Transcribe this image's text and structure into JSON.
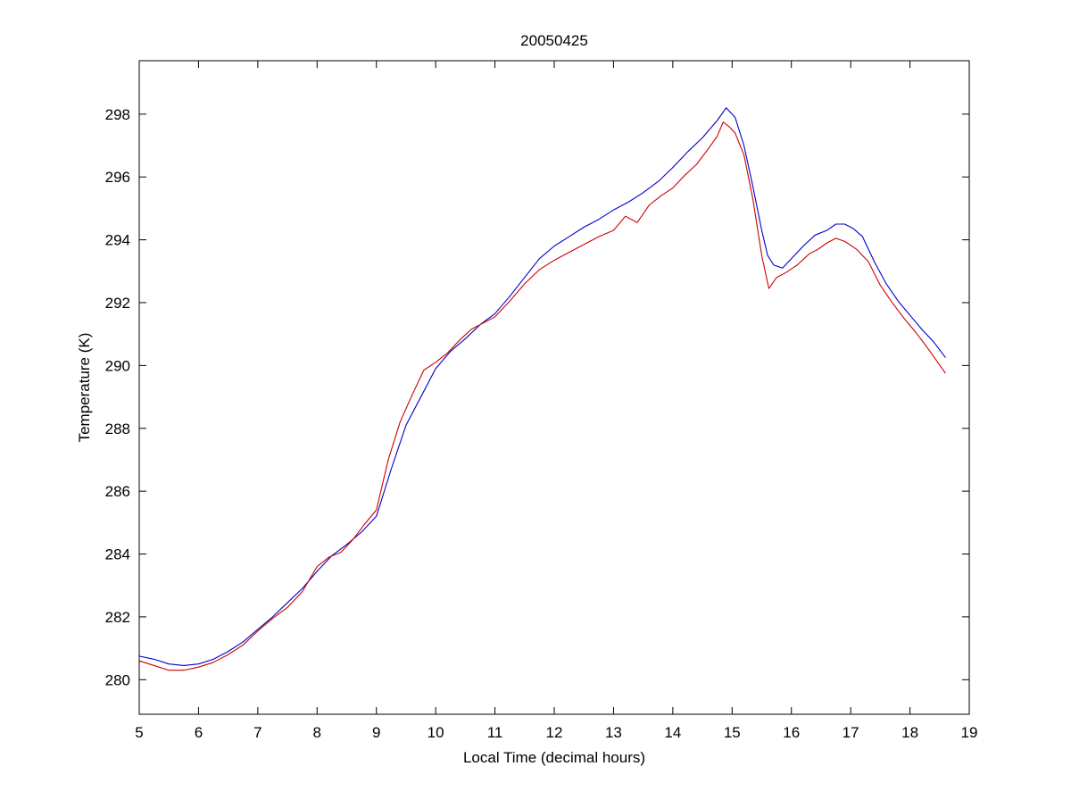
{
  "chart_data": {
    "type": "line",
    "title": "20050425",
    "xlabel": "Local Time (decimal hours)",
    "ylabel": "Temperature (K)",
    "xlim": [
      5,
      19
    ],
    "ylim": [
      278.9,
      299.7
    ],
    "xticks": [
      5,
      6,
      7,
      8,
      9,
      10,
      11,
      12,
      13,
      14,
      15,
      16,
      17,
      18,
      19
    ],
    "yticks": [
      280,
      282,
      284,
      286,
      288,
      290,
      292,
      294,
      296,
      298
    ],
    "grid": false,
    "legend": "none",
    "series": [
      {
        "color": "#0000cc",
        "x": [
          5.0,
          5.25,
          5.5,
          5.75,
          6.0,
          6.25,
          6.5,
          6.75,
          7.0,
          7.25,
          7.5,
          7.75,
          8.0,
          8.25,
          8.5,
          8.75,
          9.0,
          9.25,
          9.5,
          9.75,
          10.0,
          10.25,
          10.5,
          10.75,
          11.0,
          11.25,
          11.5,
          11.75,
          12.0,
          12.25,
          12.5,
          12.75,
          13.0,
          13.25,
          13.5,
          13.75,
          14.0,
          14.25,
          14.5,
          14.75,
          14.9,
          15.05,
          15.2,
          15.35,
          15.5,
          15.6,
          15.7,
          15.85,
          16.0,
          16.2,
          16.4,
          16.6,
          16.75,
          16.9,
          17.05,
          17.2,
          17.4,
          17.6,
          17.8,
          18.0,
          18.2,
          18.4,
          18.6
        ],
        "y": [
          280.75,
          280.65,
          280.5,
          280.45,
          280.5,
          280.65,
          280.9,
          281.2,
          281.6,
          282.0,
          282.45,
          282.9,
          283.45,
          283.95,
          284.3,
          284.7,
          285.2,
          286.7,
          288.1,
          289.0,
          289.9,
          290.45,
          290.85,
          291.3,
          291.65,
          292.2,
          292.8,
          293.4,
          293.8,
          294.1,
          294.4,
          294.65,
          294.95,
          295.2,
          295.5,
          295.85,
          296.3,
          296.8,
          297.25,
          297.8,
          298.2,
          297.9,
          297.0,
          295.7,
          294.3,
          293.5,
          293.2,
          293.1,
          293.4,
          293.8,
          294.15,
          294.3,
          294.5,
          294.5,
          294.35,
          294.1,
          293.3,
          292.6,
          292.05,
          291.6,
          291.15,
          290.75,
          290.25
        ]
      },
      {
        "color": "#cc0000",
        "x": [
          5.0,
          5.25,
          5.5,
          5.75,
          6.0,
          6.25,
          6.5,
          6.75,
          7.0,
          7.25,
          7.5,
          7.75,
          8.0,
          8.2,
          8.4,
          8.6,
          8.8,
          9.0,
          9.2,
          9.4,
          9.6,
          9.8,
          10.0,
          10.2,
          10.4,
          10.6,
          10.8,
          11.0,
          11.25,
          11.5,
          11.75,
          12.0,
          12.25,
          12.5,
          12.75,
          13.0,
          13.2,
          13.4,
          13.6,
          13.8,
          14.0,
          14.2,
          14.4,
          14.6,
          14.75,
          14.85,
          14.95,
          15.05,
          15.2,
          15.35,
          15.5,
          15.62,
          15.75,
          15.9,
          16.1,
          16.3,
          16.45,
          16.6,
          16.75,
          16.9,
          17.1,
          17.3,
          17.5,
          17.7,
          17.9,
          18.1,
          18.3,
          18.45,
          18.6
        ],
        "y": [
          280.6,
          280.45,
          280.3,
          280.3,
          280.4,
          280.55,
          280.8,
          281.1,
          281.55,
          281.95,
          282.3,
          282.8,
          283.6,
          283.9,
          284.05,
          284.45,
          284.95,
          285.4,
          287.0,
          288.2,
          289.05,
          289.85,
          290.1,
          290.4,
          290.8,
          291.15,
          291.35,
          291.55,
          292.05,
          292.6,
          293.05,
          293.35,
          293.6,
          293.85,
          294.1,
          294.3,
          294.75,
          294.55,
          295.1,
          295.4,
          295.65,
          296.05,
          296.4,
          296.9,
          297.3,
          297.75,
          297.6,
          297.4,
          296.7,
          295.3,
          293.5,
          292.45,
          292.8,
          292.95,
          293.2,
          293.55,
          293.7,
          293.9,
          294.05,
          293.95,
          293.7,
          293.3,
          292.55,
          292.0,
          291.5,
          291.05,
          290.55,
          290.15,
          289.75
        ]
      }
    ]
  }
}
